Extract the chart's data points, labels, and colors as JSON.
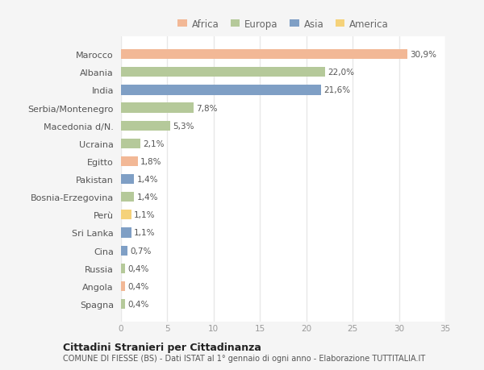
{
  "countries": [
    "Marocco",
    "Albania",
    "India",
    "Serbia/Montenegro",
    "Macedonia d/N.",
    "Ucraina",
    "Egitto",
    "Pakistan",
    "Bosnia-Erzegovina",
    "Perù",
    "Sri Lanka",
    "Cina",
    "Russia",
    "Angola",
    "Spagna"
  ],
  "values": [
    30.9,
    22.0,
    21.6,
    7.8,
    5.3,
    2.1,
    1.8,
    1.4,
    1.4,
    1.1,
    1.1,
    0.7,
    0.4,
    0.4,
    0.4
  ],
  "labels": [
    "30,9%",
    "22,0%",
    "21,6%",
    "7,8%",
    "5,3%",
    "2,1%",
    "1,8%",
    "1,4%",
    "1,4%",
    "1,1%",
    "1,1%",
    "0,7%",
    "0,4%",
    "0,4%",
    "0,4%"
  ],
  "continents": [
    "Africa",
    "Europa",
    "Asia",
    "Europa",
    "Europa",
    "Europa",
    "Africa",
    "Asia",
    "Europa",
    "America",
    "Asia",
    "Asia",
    "Europa",
    "Africa",
    "Europa"
  ],
  "continent_colors": {
    "Africa": "#F2B896",
    "Europa": "#B5C99A",
    "Asia": "#7F9FC5",
    "America": "#F5D27A"
  },
  "legend_order": [
    "Africa",
    "Europa",
    "Asia",
    "America"
  ],
  "title1": "Cittadini Stranieri per Cittadinanza",
  "title2": "COMUNE DI FIESSE (BS) - Dati ISTAT al 1° gennaio di ogni anno - Elaborazione TUTTITALIA.IT",
  "xlim": [
    0,
    35
  ],
  "xticks": [
    0,
    5,
    10,
    15,
    20,
    25,
    30,
    35
  ],
  "plot_bg_color": "#ffffff",
  "fig_bg_color": "#f5f5f5",
  "grid_color": "#e8e8e8",
  "bar_height": 0.55
}
